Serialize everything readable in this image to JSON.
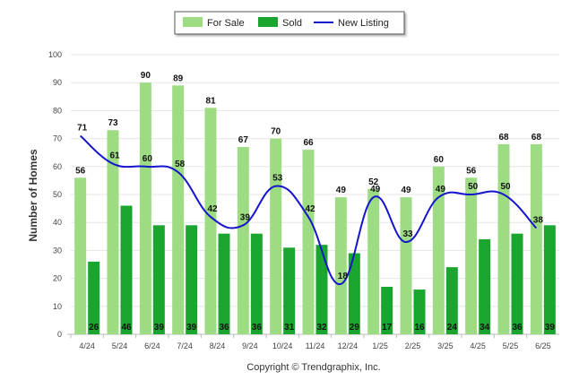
{
  "chart_data": {
    "type": "bar",
    "categories": [
      "4/24",
      "5/24",
      "6/24",
      "7/24",
      "8/24",
      "9/24",
      "10/24",
      "11/24",
      "12/24",
      "1/25",
      "2/25",
      "3/25",
      "4/25",
      "5/25",
      "6/25"
    ],
    "series": [
      {
        "name": "For Sale",
        "kind": "bar",
        "color": "#9edc84",
        "values": [
          56,
          73,
          90,
          89,
          81,
          67,
          70,
          66,
          49,
          52,
          49,
          60,
          56,
          68,
          68
        ]
      },
      {
        "name": "Sold",
        "kind": "bar",
        "color": "#1aa52e",
        "values": [
          26,
          46,
          39,
          39,
          36,
          36,
          31,
          32,
          29,
          17,
          16,
          24,
          34,
          36,
          39
        ]
      },
      {
        "name": "New Listing",
        "kind": "line",
        "color": "#1515cc",
        "values": [
          71,
          61,
          60,
          58,
          42,
          39,
          53,
          42,
          18,
          49,
          33,
          49,
          50,
          50,
          38
        ]
      }
    ],
    "ylabel": "Number of Homes",
    "xlabel": "",
    "ylim": [
      0,
      100
    ],
    "yticks": [
      0,
      10,
      20,
      30,
      40,
      50,
      60,
      70,
      80,
      90,
      100
    ],
    "grid": true,
    "legend_position": "top-center"
  },
  "footer": {
    "copyright": "Copyright © Trendgraphix, Inc."
  }
}
